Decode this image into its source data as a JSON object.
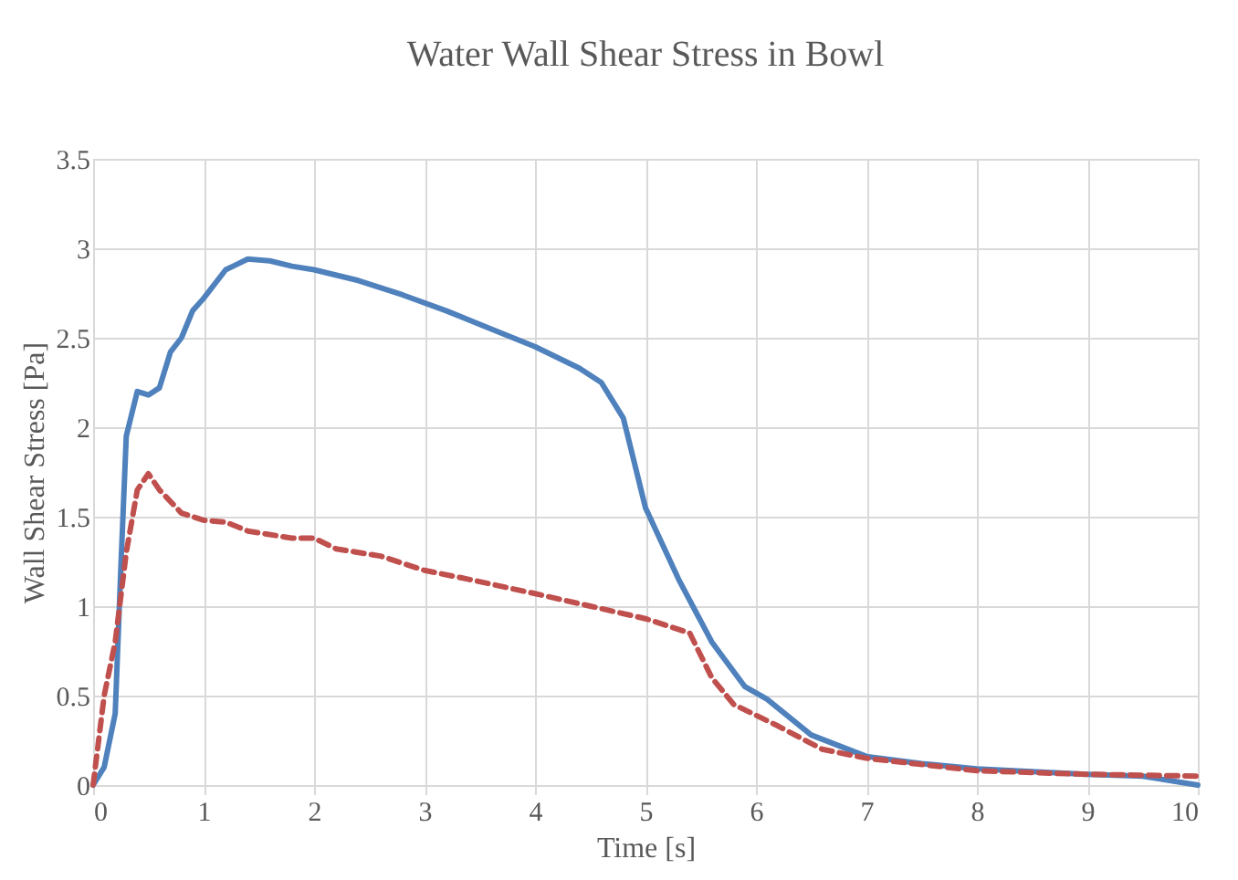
{
  "chart_data": {
    "type": "line",
    "title": "Water Wall Shear Stress in Bowl",
    "xlabel": "Time [s]",
    "ylabel": "Wall Shear Stress [Pa]",
    "xlim": [
      0,
      10
    ],
    "xticks": [
      0,
      1,
      2,
      3,
      4,
      5,
      6,
      7,
      8,
      9,
      10
    ],
    "ylim": [
      0,
      3.5
    ],
    "yticks": [
      0,
      0.5,
      1,
      1.5,
      2,
      2.5,
      3,
      3.5
    ],
    "grid": true,
    "series": [
      {
        "color": "#4f81bd",
        "line_style": "solid",
        "x": [
          0,
          0.1,
          0.2,
          0.25,
          0.3,
          0.4,
          0.5,
          0.6,
          0.7,
          0.8,
          0.9,
          1.0,
          1.2,
          1.4,
          1.6,
          1.8,
          2.0,
          2.4,
          2.8,
          3.2,
          3.6,
          4.0,
          4.4,
          4.6,
          4.8,
          5.0,
          5.3,
          5.6,
          5.9,
          6.1,
          6.5,
          7.0,
          7.5,
          8,
          9,
          9.5,
          10
        ],
        "values": [
          0,
          0.1,
          0.4,
          1.2,
          1.95,
          2.2,
          2.18,
          2.22,
          2.42,
          2.5,
          2.65,
          2.72,
          2.88,
          2.94,
          2.93,
          2.9,
          2.88,
          2.82,
          2.74,
          2.65,
          2.55,
          2.45,
          2.33,
          2.25,
          2.05,
          1.55,
          1.15,
          0.8,
          0.55,
          0.48,
          0.28,
          0.16,
          0.12,
          0.09,
          0.06,
          0.05,
          0
        ]
      },
      {
        "color": "#c0504d",
        "line_style": "dashed",
        "x": [
          0,
          0.1,
          0.2,
          0.3,
          0.4,
          0.5,
          0.6,
          0.8,
          1.0,
          1.2,
          1.4,
          1.8,
          2.0,
          2.2,
          2.6,
          3.0,
          3.4,
          4.0,
          4.5,
          5.0,
          5.4,
          5.6,
          5.8,
          6.2,
          6.6,
          7.0,
          8,
          9,
          10
        ],
        "values": [
          0,
          0.5,
          0.8,
          1.3,
          1.65,
          1.74,
          1.65,
          1.52,
          1.48,
          1.47,
          1.42,
          1.38,
          1.38,
          1.32,
          1.28,
          1.2,
          1.15,
          1.07,
          1.0,
          0.93,
          0.85,
          0.6,
          0.45,
          0.33,
          0.2,
          0.15,
          0.08,
          0.06,
          0.05
        ]
      }
    ]
  }
}
